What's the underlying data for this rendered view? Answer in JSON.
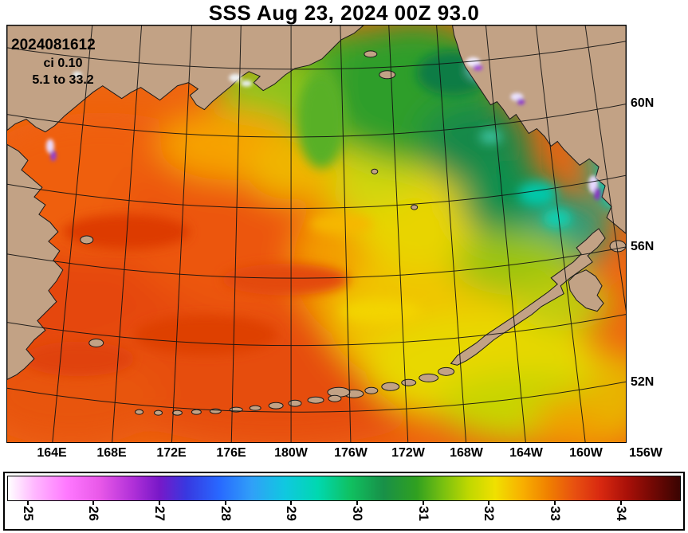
{
  "title": "SSS Aug 23, 2024 00Z 93.0",
  "annotations": {
    "run_id": "2024081612",
    "ci": "ci 0.10",
    "range": "5.1 to 33.2"
  },
  "axes": {
    "lat_labels": [
      "60N",
      "56N",
      "52N"
    ],
    "lon_labels": [
      "164E",
      "168E",
      "172E",
      "176E",
      "180W",
      "176W",
      "172W",
      "168W",
      "164W",
      "160W",
      "156W"
    ]
  },
  "colorbar": {
    "units": "",
    "min": 24.7,
    "max": 34.9,
    "ticks": [
      "25",
      "26",
      "27",
      "28",
      "29",
      "30",
      "31",
      "32",
      "33",
      "34"
    ],
    "stops": [
      {
        "v": 24.7,
        "color": "#ffffff"
      },
      {
        "v": 25.1,
        "color": "#ffb8ff"
      },
      {
        "v": 25.6,
        "color": "#ff78ff"
      },
      {
        "v": 26.1,
        "color": "#e858e8"
      },
      {
        "v": 26.6,
        "color": "#b030d8"
      },
      {
        "v": 27.0,
        "color": "#7818c8"
      },
      {
        "v": 27.4,
        "color": "#3838e0"
      },
      {
        "v": 27.9,
        "color": "#2868ff"
      },
      {
        "v": 28.4,
        "color": "#30a0f8"
      },
      {
        "v": 28.9,
        "color": "#10c8e0"
      },
      {
        "v": 29.4,
        "color": "#00d8b0"
      },
      {
        "v": 29.9,
        "color": "#10c060"
      },
      {
        "v": 30.4,
        "color": "#189048"
      },
      {
        "v": 30.9,
        "color": "#30a020"
      },
      {
        "v": 31.3,
        "color": "#78c010"
      },
      {
        "v": 31.7,
        "color": "#c0d800"
      },
      {
        "v": 32.1,
        "color": "#f0e000"
      },
      {
        "v": 32.5,
        "color": "#f8b000"
      },
      {
        "v": 32.9,
        "color": "#f08000"
      },
      {
        "v": 33.3,
        "color": "#e85010"
      },
      {
        "v": 33.7,
        "color": "#d82810"
      },
      {
        "v": 34.1,
        "color": "#a81008"
      },
      {
        "v": 34.5,
        "color": "#700804"
      },
      {
        "v": 34.9,
        "color": "#3a0402"
      }
    ]
  },
  "map": {
    "land_color": "#c2a285",
    "grid_color": "#111111"
  }
}
